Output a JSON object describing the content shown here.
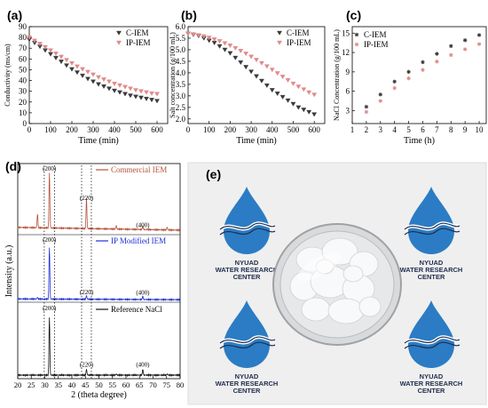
{
  "colors": {
    "c_iem": "#3a3a3a",
    "ip_iem": "#e08a8a",
    "commercial": "#b5543a",
    "ip_modified": "#1f2fd6",
    "reference": "#111111"
  },
  "chart_data": [
    {
      "panel": "(a)",
      "type": "scatter",
      "xlabel": "Time (min)",
      "ylabel": "Conductivity (ms/cm)",
      "xlim": [
        0,
        650
      ],
      "ylim": [
        0,
        90
      ],
      "xticks": [
        0,
        100,
        200,
        300,
        400,
        500,
        600
      ],
      "yticks": [
        0,
        10,
        20,
        30,
        40,
        50,
        60,
        70,
        80,
        90
      ],
      "series": [
        {
          "name": "C-IEM",
          "x": [
            0,
            25,
            50,
            75,
            100,
            125,
            150,
            175,
            200,
            225,
            250,
            275,
            300,
            325,
            350,
            375,
            400,
            425,
            450,
            475,
            500,
            525,
            550,
            575,
            600
          ],
          "values": [
            78,
            75,
            71.5,
            68,
            64.5,
            61,
            57.5,
            54,
            50.5,
            47.5,
            44.5,
            41.5,
            39,
            36.5,
            34.5,
            32.5,
            30.5,
            29,
            27.5,
            26,
            25,
            24,
            23,
            22,
            21
          ]
        },
        {
          "name": "IP-IEM",
          "x": [
            0,
            25,
            50,
            75,
            100,
            125,
            150,
            175,
            200,
            225,
            250,
            275,
            300,
            325,
            350,
            375,
            400,
            425,
            450,
            475,
            500,
            525,
            550,
            575,
            600
          ],
          "values": [
            80,
            77,
            74,
            71,
            68,
            65,
            62,
            59,
            56,
            53,
            50.5,
            48,
            45.5,
            43,
            41,
            39,
            37,
            35.5,
            34,
            32.5,
            31,
            30,
            29,
            28,
            27.5
          ]
        }
      ]
    },
    {
      "panel": "(b)",
      "type": "scatter",
      "xlabel": "Time (min)",
      "ylabel": "Salt concentration (g/100 mL)",
      "xlim": [
        0,
        650
      ],
      "ylim": [
        1.8,
        6.0
      ],
      "xticks": [
        0,
        100,
        200,
        300,
        400,
        500,
        600
      ],
      "yticks": [
        "2.0",
        "2.5",
        "3.0",
        "3.5",
        "4.0",
        "4.5",
        "5.0",
        "5.5",
        "6.0"
      ],
      "series": [
        {
          "name": "C-IEM",
          "x": [
            0,
            25,
            50,
            75,
            100,
            125,
            150,
            175,
            200,
            225,
            250,
            275,
            300,
            325,
            350,
            375,
            400,
            425,
            450,
            475,
            500,
            525,
            550,
            575,
            600
          ],
          "values": [
            5.7,
            5.65,
            5.6,
            5.5,
            5.4,
            5.3,
            5.15,
            5.0,
            4.85,
            4.65,
            4.45,
            4.25,
            4.05,
            3.85,
            3.65,
            3.45,
            3.25,
            3.1,
            2.95,
            2.8,
            2.65,
            2.5,
            2.4,
            2.3,
            2.2
          ]
        },
        {
          "name": "IP-IEM",
          "x": [
            0,
            25,
            50,
            75,
            100,
            125,
            150,
            175,
            200,
            225,
            250,
            275,
            300,
            325,
            350,
            375,
            400,
            425,
            450,
            475,
            500,
            525,
            550,
            575,
            600
          ],
          "values": [
            5.7,
            5.67,
            5.63,
            5.58,
            5.52,
            5.45,
            5.37,
            5.28,
            5.18,
            5.07,
            4.95,
            4.83,
            4.7,
            4.56,
            4.42,
            4.28,
            4.13,
            3.98,
            3.83,
            3.68,
            3.53,
            3.4,
            3.28,
            3.15,
            3.05
          ]
        }
      ]
    },
    {
      "panel": "(c)",
      "type": "scatter",
      "xlabel": "Time (h)",
      "ylabel": "NaCl Concentration (g/100 mL)",
      "xlim": [
        1,
        10.5
      ],
      "ylim": [
        1,
        16
      ],
      "xticks": [
        1,
        2,
        3,
        4,
        5,
        6,
        7,
        8,
        9,
        10
      ],
      "yticks": [
        3,
        6,
        9,
        12,
        15
      ],
      "series": [
        {
          "name": "C-IEM",
          "x": [
            2,
            3,
            4,
            5,
            6,
            7,
            8,
            9,
            10
          ],
          "values": [
            3.6,
            5.5,
            7.5,
            9.0,
            10.5,
            11.8,
            13.0,
            13.9,
            14.7
          ]
        },
        {
          "name": "IP-IEM",
          "x": [
            2,
            3,
            4,
            5,
            6,
            7,
            8,
            9,
            10
          ],
          "values": [
            2.8,
            4.5,
            6.5,
            8.0,
            9.3,
            10.6,
            11.6,
            12.5,
            13.3
          ]
        }
      ]
    },
    {
      "panel": "(d)",
      "type": "line",
      "xlabel": "2 (theta degree)",
      "ylabel": "Intensity (a.u.)",
      "xlim": [
        20,
        80
      ],
      "xticks": [
        20,
        25,
        30,
        35,
        40,
        45,
        50,
        55,
        60,
        65,
        70,
        75,
        80
      ],
      "peak_labels": [
        "(200)",
        "(220)",
        "(400)"
      ],
      "series": [
        {
          "name": "Commercial IEM",
          "peaks": [
            [
              27.3,
              0.25
            ],
            [
              31.7,
              1.0
            ],
            [
              45.4,
              0.55
            ],
            [
              56.4,
              0.06
            ],
            [
              66.2,
              0.06
            ],
            [
              75.2,
              0.05
            ]
          ],
          "baseline": 0.1
        },
        {
          "name": "IP Modified IEM",
          "peaks": [
            [
              31.7,
              1.0
            ],
            [
              45.4,
              0.07
            ],
            [
              66.2,
              0.06
            ],
            [
              27.3,
              0.03
            ]
          ],
          "baseline": 0.03
        },
        {
          "name": "Reference NaCl",
          "peaks": [
            [
              31.7,
              1.0
            ],
            [
              45.4,
              0.1
            ],
            [
              66.2,
              0.1
            ],
            [
              56.4,
              0.02
            ],
            [
              75.3,
              0.02
            ]
          ],
          "baseline": 0.0
        }
      ]
    }
  ],
  "photo": {
    "panel": "(e)",
    "logo_lines": [
      "NYUAD",
      "WATER RESEARCH",
      "CENTER"
    ]
  }
}
